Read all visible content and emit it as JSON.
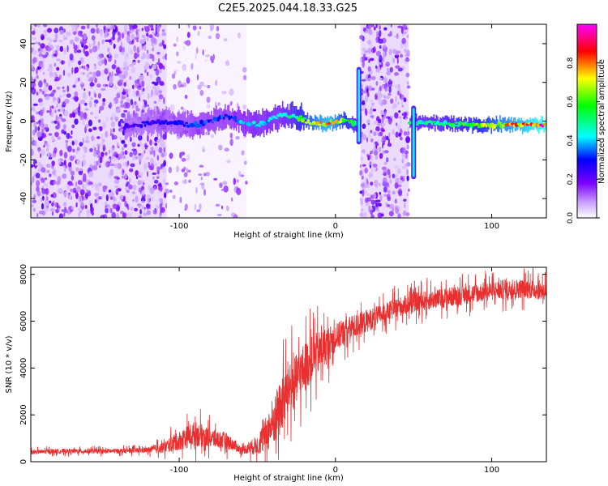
{
  "title": "C2E5.2025.044.18.33.G25",
  "chart_data": [
    {
      "type": "heatmap",
      "xlabel": "Height of straight line (km)",
      "ylabel": "Frequency (Hz)",
      "xlim": [
        -195,
        135
      ],
      "ylim": [
        -50,
        50
      ],
      "xticks": [
        -100,
        0,
        100
      ],
      "yticks": [
        -40,
        -20,
        0,
        20,
        40
      ],
      "colorbar": {
        "label": "Normalized spectral amplitude",
        "range": [
          0,
          1
        ],
        "ticks": [
          "0.0",
          "0.2",
          "0.4",
          "0.6",
          "0.8"
        ],
        "colors": [
          "#ffffff",
          "#7b00ff",
          "#0000ff",
          "#00ffff",
          "#00ff00",
          "#ffff00",
          "#ff0000",
          "#ff00ff"
        ]
      },
      "noise_bands": [
        {
          "x": [
            -195,
            -108
          ],
          "density": "high"
        },
        {
          "x": [
            -108,
            -57
          ],
          "density": "low"
        },
        {
          "x": [
            16,
            47
          ],
          "density": "high"
        }
      ],
      "signal_track": {
        "x": [
          -135,
          -110,
          -90,
          -70,
          -50,
          -35,
          -25,
          -15,
          -5,
          5,
          12,
          50,
          70,
          90,
          110,
          135
        ],
        "y": [
          -3,
          0,
          -2,
          2,
          -2,
          3,
          2,
          -1,
          -1,
          0,
          -1,
          -1,
          -1,
          -2,
          -2,
          -2
        ],
        "amplitude": [
          0.25,
          0.3,
          0.35,
          0.35,
          0.45,
          0.45,
          0.6,
          0.75,
          0.85,
          0.7,
          0.55,
          0.5,
          0.55,
          0.65,
          0.8,
          0.95
        ]
      },
      "spikes": [
        {
          "x": 15,
          "y_range": [
            -12,
            28
          ]
        },
        {
          "x": 50,
          "y_range": [
            -30,
            8
          ]
        }
      ]
    },
    {
      "type": "line",
      "xlabel": "Height of straight line (km)",
      "ylabel": "SNR (10 * v/v)",
      "xlim": [
        -195,
        135
      ],
      "ylim": [
        0,
        8300
      ],
      "xticks": [
        -100,
        0,
        100
      ],
      "yticks": [
        0,
        2000,
        4000,
        6000,
        8000
      ],
      "color": "#e83030",
      "series": [
        {
          "x": [
            -195,
            -180,
            -160,
            -140,
            -120,
            -110,
            -100,
            -90,
            -80,
            -70,
            -60,
            -50,
            -45,
            -40,
            -35,
            -30,
            -25,
            -20,
            -15,
            -10,
            -5,
            0,
            10,
            20,
            30,
            40,
            50,
            60,
            70,
            80,
            90,
            100,
            110,
            120,
            135
          ],
          "y": [
            400,
            450,
            450,
            450,
            500,
            600,
            900,
            1200,
            1000,
            900,
            500,
            700,
            1100,
            1700,
            2300,
            3200,
            3500,
            4000,
            4400,
            4700,
            5000,
            5300,
            5700,
            6000,
            6300,
            6600,
            6800,
            6900,
            7000,
            7100,
            7200,
            7300,
            7350,
            7400,
            7300
          ],
          "noise_amplitude": [
            150,
            160,
            170,
            170,
            200,
            400,
            700,
            900,
            700,
            600,
            250,
            700,
            1200,
            1800,
            2000,
            2000,
            1800,
            1800,
            1600,
            1500,
            1300,
            1000,
            900,
            800,
            700,
            700,
            700,
            700,
            700,
            700,
            700,
            700,
            700,
            700,
            700
          ]
        }
      ]
    }
  ]
}
